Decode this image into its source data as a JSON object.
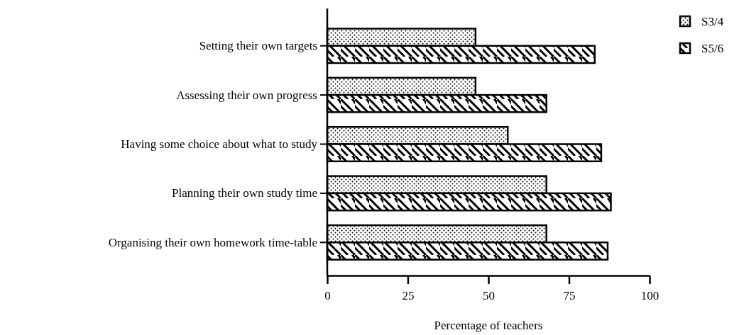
{
  "chart_data": {
    "type": "bar",
    "orientation": "horizontal",
    "xlabel": "Percentage of teachers",
    "categories": [
      "Setting their own targets",
      "Assessing their own progress",
      "Having some choice about what to study",
      "Planning their own study time",
      "Organising their own homework time-table"
    ],
    "series": [
      {
        "name": "S3/4",
        "color": "#000000",
        "values": [
          46,
          46,
          56,
          68,
          68
        ]
      },
      {
        "name": "S5/6",
        "color": "#000000",
        "values": [
          83,
          68,
          85,
          88,
          87
        ]
      }
    ],
    "xlim": [
      0,
      100
    ],
    "xticks": [
      0,
      25,
      50,
      75,
      100
    ],
    "legend": "top right"
  }
}
